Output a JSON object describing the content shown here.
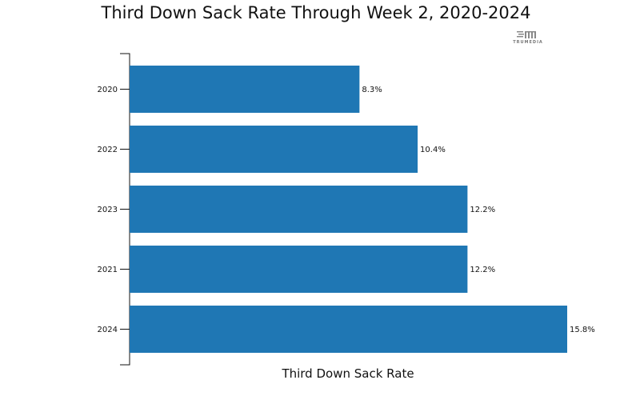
{
  "chart_data": {
    "type": "bar",
    "orientation": "horizontal",
    "title": "Third Down Sack Rate Through Week 2, 2020-2024",
    "xlabel": "Third Down Sack Rate",
    "ylabel": "",
    "categories": [
      "2020",
      "2022",
      "2023",
      "2021",
      "2024"
    ],
    "values": [
      8.3,
      10.4,
      12.2,
      12.2,
      15.8
    ],
    "value_labels": [
      "8.3%",
      "10.4%",
      "12.2%",
      "12.2%",
      "15.8%"
    ],
    "xlim": [
      0,
      15.8
    ],
    "grid": false,
    "bar_color": "#1f77b4"
  },
  "logo": {
    "text": "TRUMEDIA"
  }
}
